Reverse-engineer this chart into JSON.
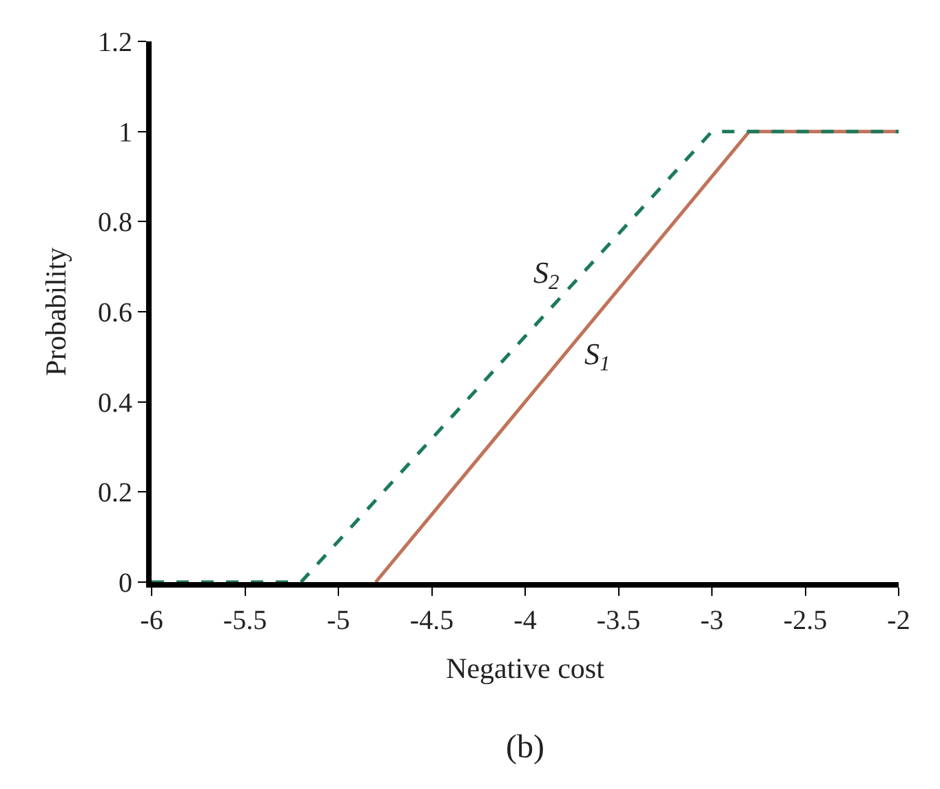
{
  "chart_data": {
    "type": "line",
    "xlabel": "Negative cost",
    "ylabel": "Probability",
    "xlim": [
      -6,
      -2
    ],
    "xticks": [
      -6,
      -5.5,
      -5,
      -4.5,
      -4,
      -3.5,
      -3,
      -2.5,
      -2
    ],
    "ylim": [
      0,
      1.2
    ],
    "yticks": [
      0,
      0.2,
      0.4,
      0.6,
      0.8,
      1,
      1.2
    ],
    "marker": "none",
    "series": [
      {
        "color": "#c0735a",
        "line_style": "solid",
        "x": [
          -4.8,
          -2.8,
          -2
        ],
        "values": [
          0,
          1,
          1
        ]
      },
      {
        "color": "#1b7a5c",
        "line_style": "dashed",
        "x": [
          -6,
          -5.2,
          -3,
          -2
        ],
        "values": [
          0,
          0,
          1,
          1
        ]
      }
    ],
    "annotations": [
      {
        "text": "S$_{2}$",
        "x": -3.7,
        "y": 0.68
      },
      {
        "text": "S$_{1}$",
        "x": -3.8,
        "y": 0.5
      },
      "(b)"
    ]
  }
}
